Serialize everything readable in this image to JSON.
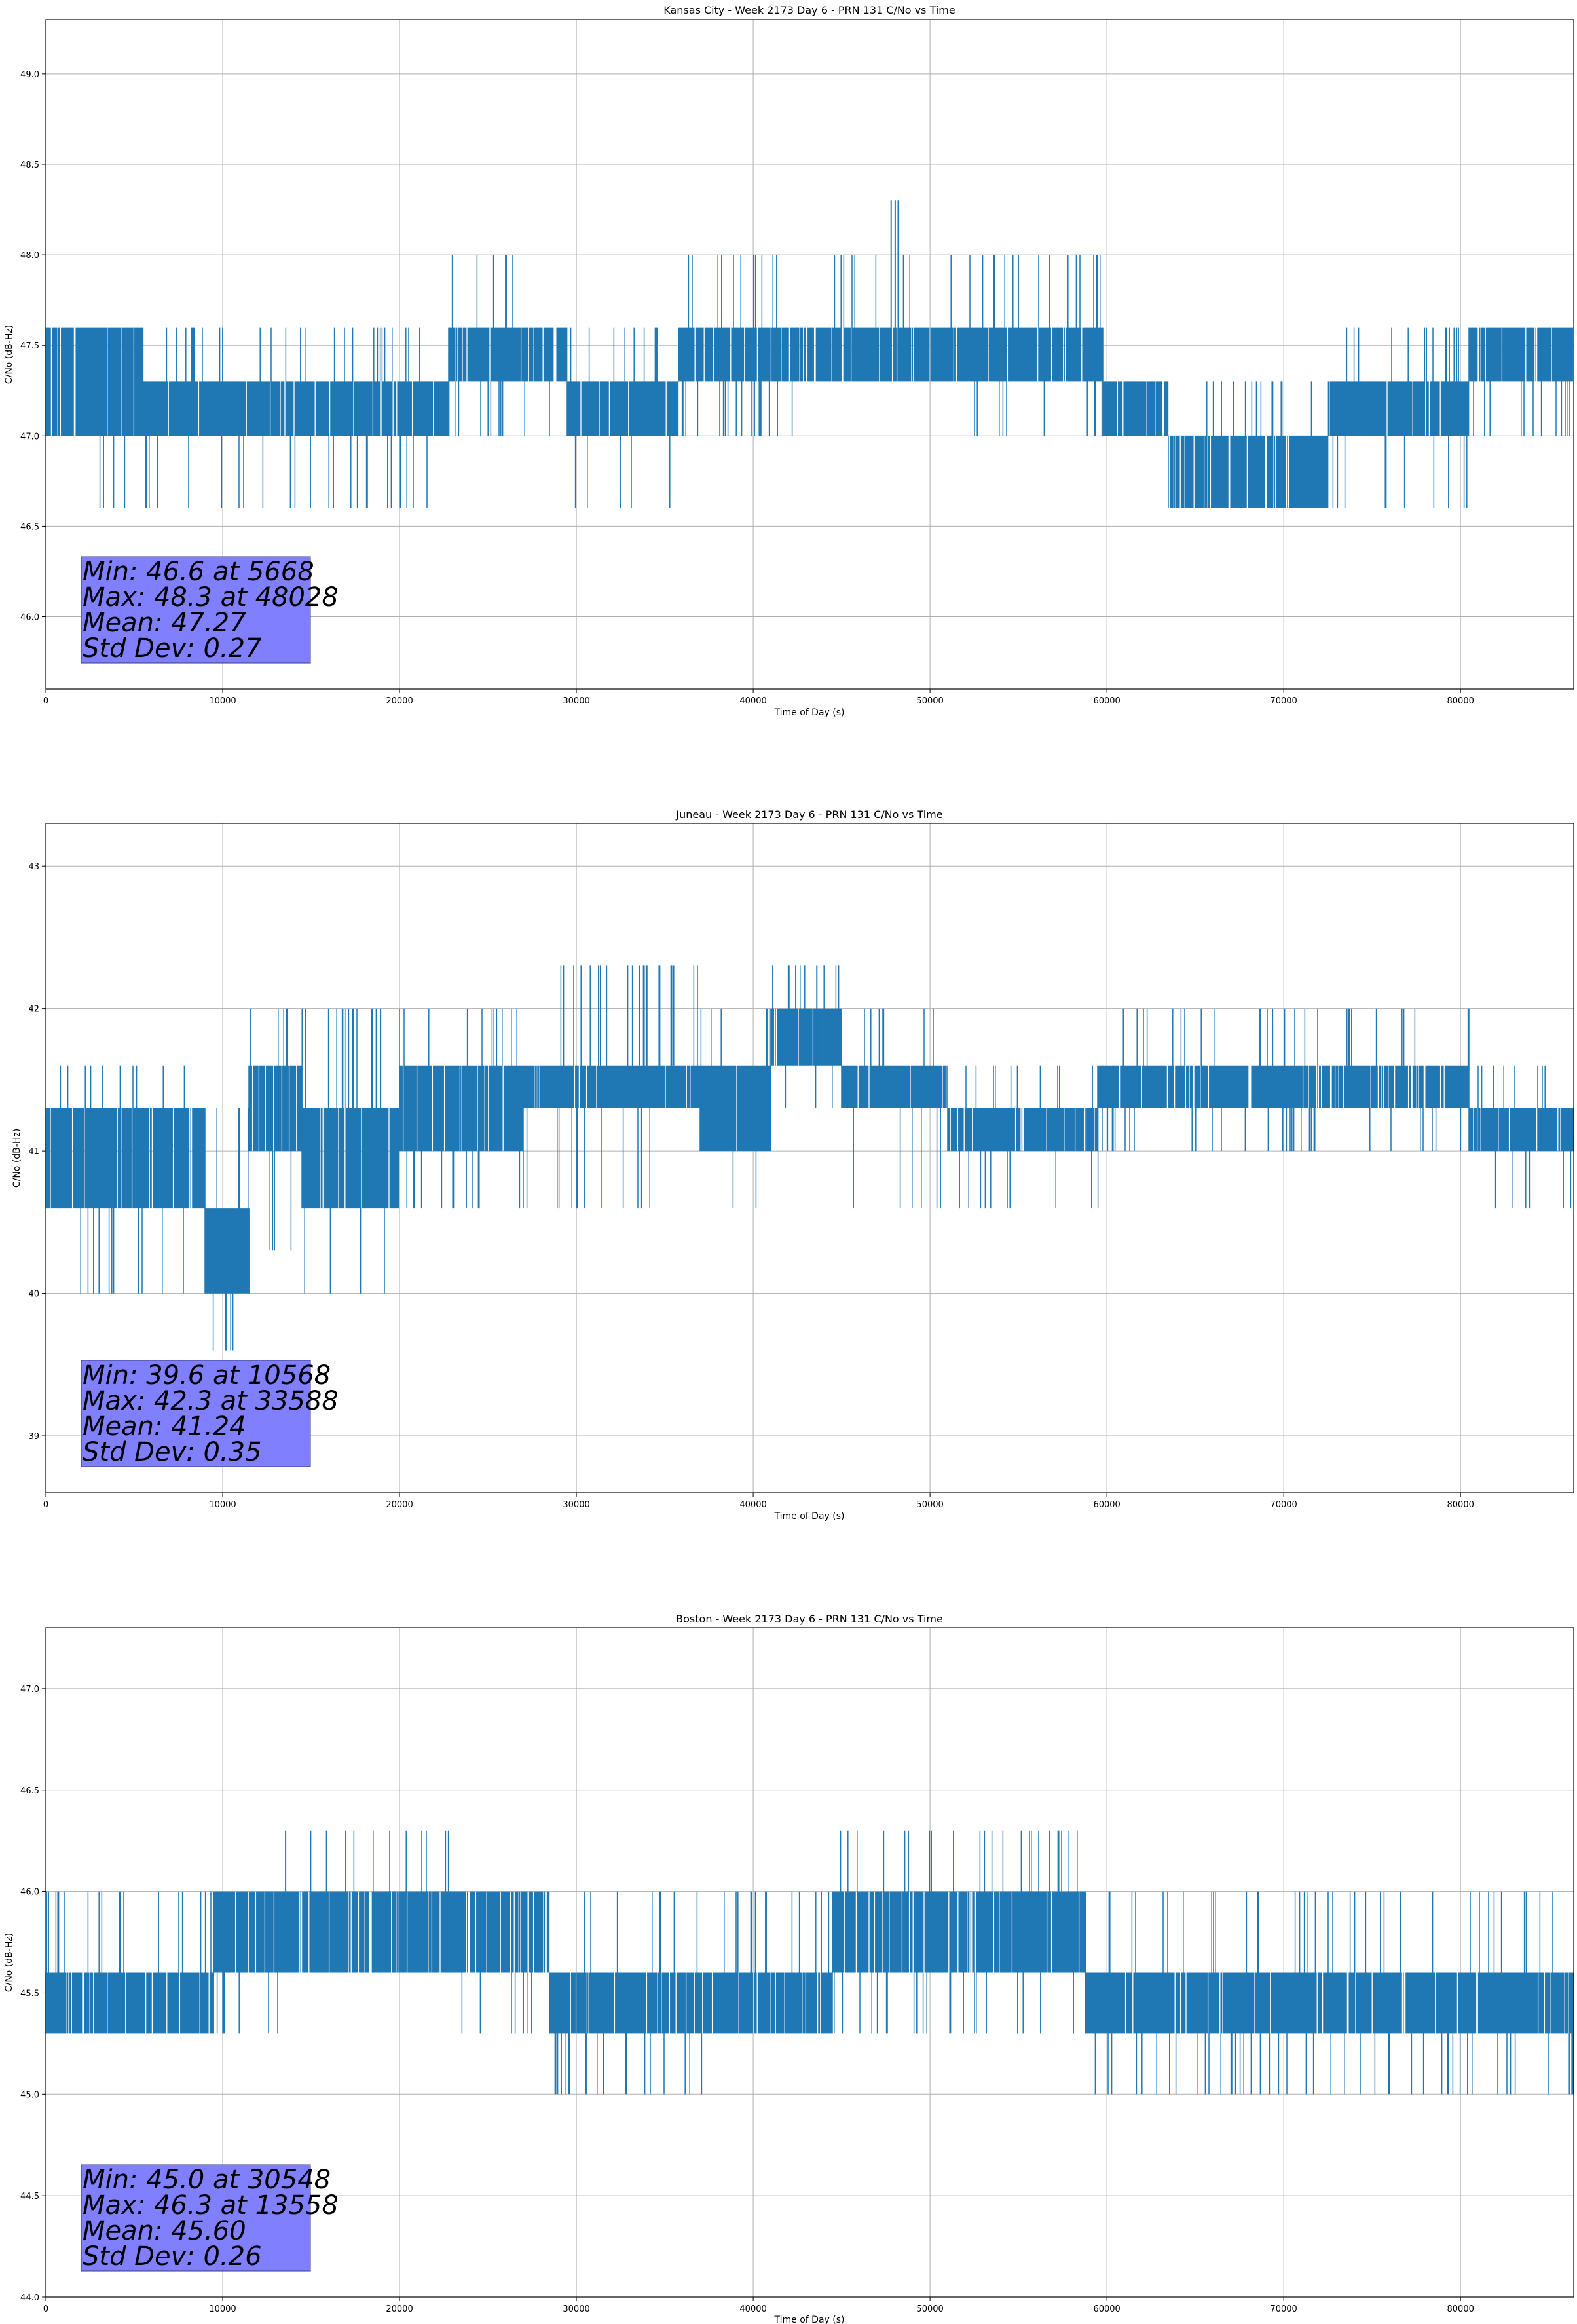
{
  "colors": {
    "series": "#1f77b4",
    "grid": "#b0b0b0",
    "stats_box_fill": "#8080ff",
    "stats_box_edge": "#3a3a80"
  },
  "chart_data": [
    {
      "type": "line",
      "title": "Kansas City - Week 2173 Day 6 - PRN 131 C/No vs Time",
      "xlabel": "Time of Day (s)",
      "ylabel": "C/No (dB-Hz)",
      "xlim": [
        0,
        86400
      ],
      "ylim": [
        45.6,
        49.3
      ],
      "xticks": [
        0,
        10000,
        20000,
        30000,
        40000,
        50000,
        60000,
        70000,
        80000
      ],
      "yticks": [
        46.0,
        46.5,
        47.0,
        47.5,
        48.0,
        48.5,
        49.0
      ],
      "ytick_labels": [
        "46.0",
        "46.5",
        "47.0",
        "47.5",
        "48.0",
        "48.5",
        "49.0"
      ],
      "grid": true,
      "stats_position": "bottom-left",
      "stats": [
        "Min: 46.6 at 5668",
        "Max: 48.3 at 48028",
        "Mean: 47.27",
        "Std Dev: 0.27"
      ],
      "series": [
        {
          "segments": [
            {
              "x": [
                0,
                5500
              ],
              "base": [
                47.0,
                47.6
              ],
              "spikes": [
                46.6,
                47.6
              ]
            },
            {
              "x": [
                5500,
                22800
              ],
              "base": [
                47.0,
                47.3
              ],
              "spikes": [
                46.6,
                47.6
              ]
            },
            {
              "x": [
                22800,
                27200
              ],
              "base": [
                47.3,
                47.6
              ],
              "spikes": [
                47.0,
                48.0
              ]
            },
            {
              "x": [
                27200,
                29500
              ],
              "base": [
                47.3,
                47.6
              ],
              "spikes": [
                47.0,
                47.6
              ]
            },
            {
              "x": [
                29500,
                35800
              ],
              "base": [
                47.0,
                47.3
              ],
              "spikes": [
                46.6,
                47.6
              ]
            },
            {
              "x": [
                35800,
                42500
              ],
              "base": [
                47.3,
                47.6
              ],
              "spikes": [
                47.0,
                48.0
              ]
            },
            {
              "x": [
                42500,
                52000
              ],
              "base": [
                47.3,
                47.6
              ],
              "spikes": [
                47.3,
                48.0
              ]
            },
            {
              "x": [
                52000,
                59800
              ],
              "base": [
                47.3,
                47.6
              ],
              "spikes": [
                47.0,
                48.0
              ]
            },
            {
              "x": [
                59800,
                63500
              ],
              "base": [
                47.0,
                47.3
              ],
              "spikes": [
                47.0,
                47.3
              ]
            },
            {
              "x": [
                63500,
                72500
              ],
              "base": [
                46.6,
                47.0
              ],
              "spikes": [
                46.6,
                47.3
              ]
            },
            {
              "x": [
                72500,
                80500
              ],
              "base": [
                47.0,
                47.3
              ],
              "spikes": [
                46.6,
                47.6
              ]
            },
            {
              "x": [
                80500,
                86400
              ],
              "base": [
                47.3,
                47.6
              ],
              "spikes": [
                47.0,
                47.6
              ]
            }
          ],
          "extremes": [
            {
              "x": 5668,
              "y": [
                46.6,
                47.0
              ]
            },
            {
              "x": 48028,
              "y": [
                47.6,
                48.3
              ]
            },
            {
              "x": 48200,
              "y": [
                47.6,
                48.3
              ]
            },
            {
              "x": 47800,
              "y": [
                47.6,
                48.3
              ]
            }
          ]
        }
      ]
    },
    {
      "type": "line",
      "title": "Juneau - Week 2173 Day 6 - PRN 131 C/No vs Time",
      "xlabel": "Time of Day (s)",
      "ylabel": "C/No (dB-Hz)",
      "xlim": [
        0,
        86400
      ],
      "ylim": [
        38.6,
        43.3
      ],
      "xticks": [
        0,
        10000,
        20000,
        30000,
        40000,
        50000,
        60000,
        70000,
        80000
      ],
      "yticks": [
        39,
        40,
        41,
        42,
        43
      ],
      "ytick_labels": [
        "39",
        "40",
        "41",
        "42",
        "43"
      ],
      "grid": true,
      "stats_position": "bottom-left",
      "stats": [
        "Min: 39.6 at 10568",
        "Max: 42.3 at 33588",
        "Mean: 41.24",
        "Std Dev: 0.35"
      ],
      "series": [
        {
          "segments": [
            {
              "x": [
                0,
                9000
              ],
              "base": [
                40.6,
                41.3
              ],
              "spikes": [
                40.0,
                41.6
              ]
            },
            {
              "x": [
                9000,
                11500
              ],
              "base": [
                40.0,
                40.6
              ],
              "spikes": [
                39.6,
                41.3
              ]
            },
            {
              "x": [
                11500,
                14500
              ],
              "base": [
                41.0,
                41.6
              ],
              "spikes": [
                40.3,
                42.0
              ]
            },
            {
              "x": [
                14500,
                20000
              ],
              "base": [
                40.6,
                41.3
              ],
              "spikes": [
                40.0,
                42.0
              ]
            },
            {
              "x": [
                20000,
                27000
              ],
              "base": [
                41.0,
                41.6
              ],
              "spikes": [
                40.6,
                42.0
              ]
            },
            {
              "x": [
                27000,
                37000
              ],
              "base": [
                41.3,
                41.6
              ],
              "spikes": [
                40.6,
                42.3
              ]
            },
            {
              "x": [
                37000,
                41000
              ],
              "base": [
                41.0,
                41.6
              ],
              "spikes": [
                40.6,
                42.0
              ]
            },
            {
              "x": [
                41000,
                45000
              ],
              "base": [
                41.6,
                42.0
              ],
              "spikes": [
                41.3,
                42.3
              ]
            },
            {
              "x": [
                45000,
                51000
              ],
              "base": [
                41.3,
                41.6
              ],
              "spikes": [
                40.6,
                42.0
              ]
            },
            {
              "x": [
                51000,
                59500
              ],
              "base": [
                41.0,
                41.3
              ],
              "spikes": [
                40.6,
                41.6
              ]
            },
            {
              "x": [
                59500,
                80500
              ],
              "base": [
                41.3,
                41.6
              ],
              "spikes": [
                41.0,
                42.0
              ]
            },
            {
              "x": [
                80500,
                86400
              ],
              "base": [
                41.0,
                41.3
              ],
              "spikes": [
                40.6,
                41.6
              ]
            }
          ],
          "extremes": [
            {
              "x": 10568,
              "y": [
                39.6,
                40.3
              ]
            },
            {
              "x": 33588,
              "y": [
                41.6,
                42.3
              ]
            },
            {
              "x": 35500,
              "y": [
                41.6,
                42.3
              ]
            },
            {
              "x": 43600,
              "y": [
                41.6,
                42.3
              ]
            }
          ]
        }
      ]
    },
    {
      "type": "line",
      "title": "Boston - Week 2173 Day 6 - PRN 131 C/No vs Time",
      "xlabel": "Time of Day (s)",
      "ylabel": "C/No (dB-Hz)",
      "xlim": [
        0,
        86400
      ],
      "ylim": [
        44.0,
        47.3
      ],
      "xticks": [
        0,
        10000,
        20000,
        30000,
        40000,
        50000,
        60000,
        70000,
        80000
      ],
      "yticks": [
        44.0,
        44.5,
        45.0,
        45.5,
        46.0,
        46.5,
        47.0
      ],
      "ytick_labels": [
        "44.0",
        "44.5",
        "45.0",
        "45.5",
        "46.0",
        "46.5",
        "47.0"
      ],
      "grid": true,
      "stats_position": "bottom-left",
      "stats": [
        "Min: 45.0 at 30548",
        "Max: 46.3 at 13558",
        "Mean: 45.60",
        "Std Dev: 0.26"
      ],
      "series": [
        {
          "segments": [
            {
              "x": [
                0,
                9500
              ],
              "base": [
                45.3,
                45.6
              ],
              "spikes": [
                45.3,
                46.0
              ]
            },
            {
              "x": [
                9500,
                13500
              ],
              "base": [
                45.6,
                46.0
              ],
              "spikes": [
                45.3,
                46.0
              ]
            },
            {
              "x": [
                13500,
                23500
              ],
              "base": [
                45.6,
                46.0
              ],
              "spikes": [
                45.6,
                46.3
              ]
            },
            {
              "x": [
                23500,
                28500
              ],
              "base": [
                45.6,
                46.0
              ],
              "spikes": [
                45.3,
                46.0
              ]
            },
            {
              "x": [
                28500,
                37500
              ],
              "base": [
                45.3,
                45.6
              ],
              "spikes": [
                45.0,
                46.0
              ]
            },
            {
              "x": [
                37500,
                44500
              ],
              "base": [
                45.3,
                45.6
              ],
              "spikes": [
                45.3,
                46.0
              ]
            },
            {
              "x": [
                44500,
                58800
              ],
              "base": [
                45.6,
                46.0
              ],
              "spikes": [
                45.3,
                46.3
              ]
            },
            {
              "x": [
                58800,
                86400
              ],
              "base": [
                45.3,
                45.6
              ],
              "spikes": [
                45.0,
                46.0
              ]
            }
          ],
          "extremes": [
            {
              "x": 13558,
              "y": [
                45.6,
                46.3
              ]
            },
            {
              "x": 30548,
              "y": [
                45.0,
                45.3
              ]
            },
            {
              "x": 86300,
              "y": [
                45.0,
                45.6
              ]
            }
          ]
        }
      ]
    }
  ]
}
